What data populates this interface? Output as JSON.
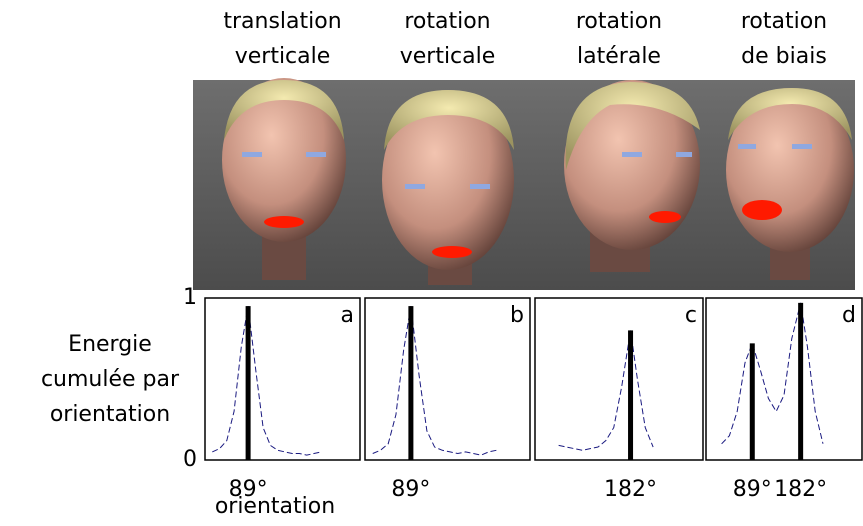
{
  "chart_data": [
    {
      "type": "line",
      "title": [
        "translation",
        "verticale"
      ],
      "label": "a",
      "color": "#1a1a80",
      "x": [
        15,
        30,
        45,
        60,
        75,
        89,
        105,
        120,
        135,
        150,
        165,
        180,
        195,
        210,
        225,
        240
      ],
      "values": [
        0.05,
        0.07,
        0.12,
        0.3,
        0.7,
        0.95,
        0.55,
        0.2,
        0.09,
        0.06,
        0.05,
        0.04,
        0.04,
        0.03,
        0.04,
        0.05
      ],
      "bars": {
        "x": [
          89
        ],
        "values": [
          0.95
        ]
      },
      "xlim": [
        0,
        320
      ],
      "xticks": [
        {
          "value": 89,
          "label": "89°"
        }
      ],
      "ylim": [
        0,
        1
      ],
      "yticks": [
        0,
        1
      ]
    },
    {
      "type": "line",
      "title": [
        "rotation",
        "verticale"
      ],
      "label": "b",
      "color": "#1a1a80",
      "x": [
        15,
        30,
        45,
        60,
        75,
        89,
        105,
        120,
        135,
        150,
        165,
        180,
        195,
        210,
        225,
        240,
        255
      ],
      "values": [
        0.04,
        0.06,
        0.1,
        0.28,
        0.68,
        0.95,
        0.52,
        0.18,
        0.08,
        0.06,
        0.05,
        0.04,
        0.05,
        0.04,
        0.03,
        0.05,
        0.06
      ],
      "bars": {
        "x": [
          89
        ],
        "values": [
          0.95
        ]
      },
      "xlim": [
        0,
        320
      ],
      "xticks": [
        {
          "value": 89,
          "label": "89°"
        }
      ],
      "ylim": [
        0,
        1
      ]
    },
    {
      "type": "line",
      "title": [
        "rotation",
        "latérale"
      ],
      "label": "c",
      "color": "#1a1a80",
      "x": [
        45,
        60,
        75,
        90,
        105,
        120,
        135,
        150,
        165,
        182,
        195,
        210,
        225
      ],
      "values": [
        0.09,
        0.08,
        0.07,
        0.06,
        0.07,
        0.08,
        0.12,
        0.2,
        0.45,
        0.8,
        0.5,
        0.2,
        0.08
      ],
      "bars": {
        "x": [
          182
        ],
        "values": [
          0.8
        ]
      },
      "xlim": [
        0,
        320
      ],
      "xticks": [
        {
          "value": 182,
          "label": "182°"
        }
      ],
      "ylim": [
        0,
        1
      ]
    },
    {
      "type": "line",
      "title": [
        "rotation",
        "de biais"
      ],
      "label": "d",
      "color": "#1a1a80",
      "x": [
        30,
        45,
        60,
        75,
        89,
        105,
        120,
        135,
        150,
        165,
        182,
        195,
        210,
        225
      ],
      "values": [
        0.1,
        0.15,
        0.3,
        0.6,
        0.72,
        0.55,
        0.38,
        0.3,
        0.4,
        0.75,
        0.97,
        0.7,
        0.3,
        0.1
      ],
      "bars": {
        "x": [
          89,
          182
        ],
        "values": [
          0.72,
          0.97
        ]
      },
      "xlim": [
        0,
        300
      ],
      "xticks": [
        {
          "value": 89,
          "label": "89°"
        },
        {
          "value": 182,
          "label": "182°"
        }
      ],
      "ylim": [
        0,
        1
      ]
    }
  ],
  "axes": {
    "ylabel": [
      "Energie",
      "cumulée par",
      "orientation"
    ],
    "xlabel": "orientation"
  }
}
